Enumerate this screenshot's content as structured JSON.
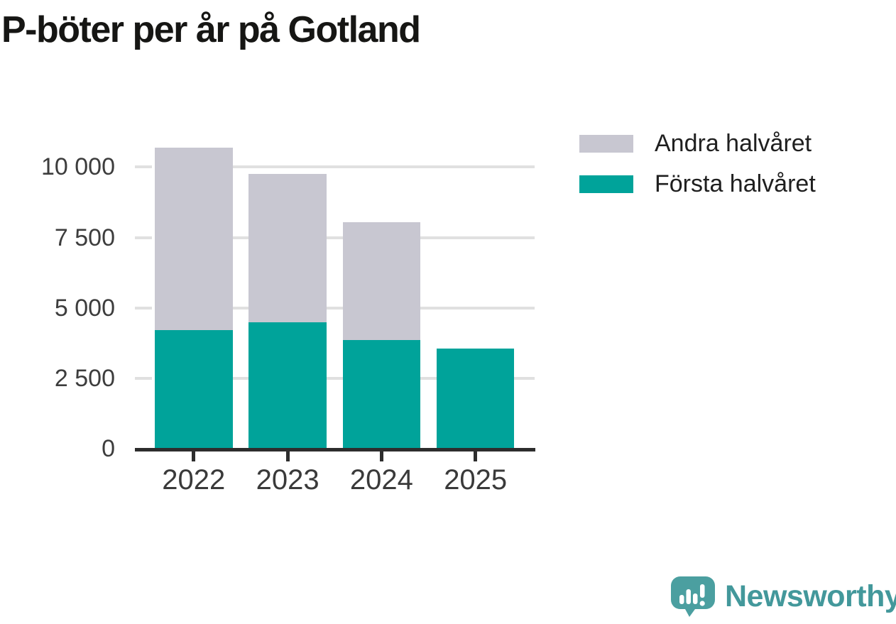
{
  "title": "P-böter per år på Gotland",
  "legend": [
    {
      "label": "Andra halvåret",
      "color": "#c8c7d1"
    },
    {
      "label": "Första halvåret",
      "color": "#00a39a"
    }
  ],
  "chart_data": {
    "type": "bar",
    "stacked": true,
    "title": "P-böter per år på Gotland",
    "categories": [
      "2022",
      "2023",
      "2024",
      "2025"
    ],
    "series": [
      {
        "name": "Första halvåret",
        "color": "#00a39a",
        "values": [
          4200,
          4500,
          3850,
          3550
        ]
      },
      {
        "name": "Andra halvåret",
        "color": "#c8c7d1",
        "values": [
          6500,
          5250,
          4200,
          0
        ]
      }
    ],
    "totals": [
      10700,
      9750,
      8050,
      3550
    ],
    "xlabel": "",
    "ylabel": "",
    "ylim": [
      0,
      10700
    ],
    "yticks": [
      0,
      2500,
      5000,
      7500,
      10000
    ],
    "ytick_labels": [
      "0",
      "2 500",
      "5 000",
      "7 500",
      "10 000"
    ],
    "grid": "horizontal",
    "legend_position": "right",
    "colors": {
      "grid": "#e0e0e0",
      "axis": "#2d2d2d",
      "tick_text": "#3a3a3a"
    }
  },
  "branding": {
    "logo_text": "Newsworthy",
    "logo_icon": "newsworthy-speech-bubble-bars-icon",
    "logo_color": "#43989b",
    "icon_fill": "#4b9fa0"
  }
}
